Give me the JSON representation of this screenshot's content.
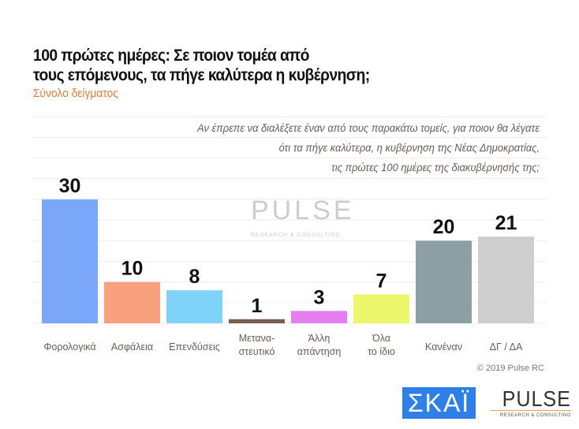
{
  "chart_data": {
    "type": "bar",
    "title": "100 πρώτες ημέρες: Σε ποιον τομέα από τους επόμενους, τα πήγε καλύτερα η κυβέρνηση;",
    "title_lines": [
      "100 πρώτες ημέρες: Σε ποιον τομέα από",
      "τους επόμενους, τα πήγε καλύτερα η κυβέρνηση;"
    ],
    "subtitle": "Σύνολο δείγματος",
    "question_lines": [
      "Αν έπρεπε να διαλέξετε έναν από τους παρακάτω τομείς, για ποιον θα λέγατε",
      "ότι τα πήγε καλύτερα, η κυβέρνηση της Νέας Δημοκρατίας,",
      "τις πρώτες 100 ημέρες της διακυβέρνησής της;"
    ],
    "categories": [
      [
        "Φορολογικά"
      ],
      [
        "Ασφάλεια"
      ],
      [
        "Επενδύσεις"
      ],
      [
        "Μετανα-",
        "στευτικό"
      ],
      [
        "Άλλη",
        "απάντηση"
      ],
      [
        "Όλα",
        "το ίδιο"
      ],
      [
        "Κανέναν"
      ],
      [
        "ΔΓ / ΔΑ"
      ]
    ],
    "values": [
      30,
      10,
      8,
      1,
      3,
      7,
      20,
      21
    ],
    "colors": [
      "#7aa7f7",
      "#f9a07f",
      "#7fd3f9",
      "#7b5e52",
      "#e57ef0",
      "#edf76b",
      "#8c9fa5",
      "#cfcfcf"
    ],
    "ylim": [
      0,
      50
    ],
    "grid": true
  },
  "footer": {
    "copyright": "© 2019 Pulse RC",
    "skai_logo": "ΣΚΑΪ",
    "pulse_logo": "PULSE",
    "pulse_tagline": "RESEARCH & CONSULTING"
  }
}
